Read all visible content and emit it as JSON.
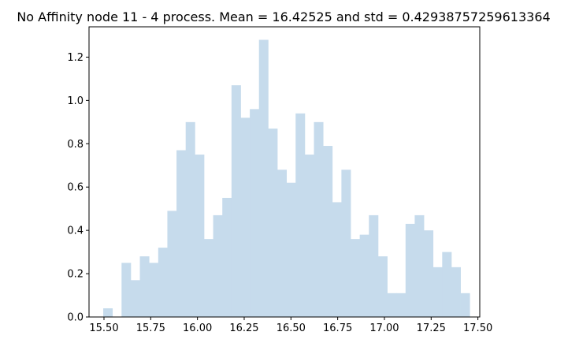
{
  "chart_data": {
    "type": "bar",
    "title": "No Affinity node 11 - 4 process. Mean = 16.42525 and std = 0.42938757259613364",
    "xlabel": "",
    "ylabel": "",
    "xlim": [
      15.42,
      17.51
    ],
    "ylim": [
      0,
      1.34
    ],
    "x_ticks": [
      "15.50",
      "15.75",
      "16.00",
      "16.25",
      "16.50",
      "16.75",
      "17.00",
      "17.25",
      "17.50"
    ],
    "y_ticks": [
      "0.0",
      "0.2",
      "0.4",
      "0.6",
      "0.8",
      "1.0",
      "1.2"
    ],
    "x_tick_values": [
      15.5,
      15.75,
      16.0,
      16.25,
      16.5,
      16.75,
      17.0,
      17.25,
      17.5
    ],
    "y_tick_values": [
      0.0,
      0.2,
      0.4,
      0.6,
      0.8,
      1.0,
      1.2
    ],
    "bin_start": 15.496,
    "bin_width": 0.049,
    "values": [
      0.04,
      0.0,
      0.25,
      0.17,
      0.28,
      0.25,
      0.32,
      0.49,
      0.77,
      0.9,
      0.75,
      0.36,
      0.47,
      0.55,
      1.07,
      0.92,
      0.96,
      1.28,
      0.87,
      0.68,
      0.62,
      0.94,
      0.75,
      0.9,
      0.79,
      0.53,
      0.68,
      0.36,
      0.38,
      0.47,
      0.28,
      0.11,
      0.11,
      0.43,
      0.47,
      0.4,
      0.23,
      0.3,
      0.23,
      0.11
    ],
    "bar_color": "#c6dbec",
    "grid": false,
    "legend": "none"
  }
}
